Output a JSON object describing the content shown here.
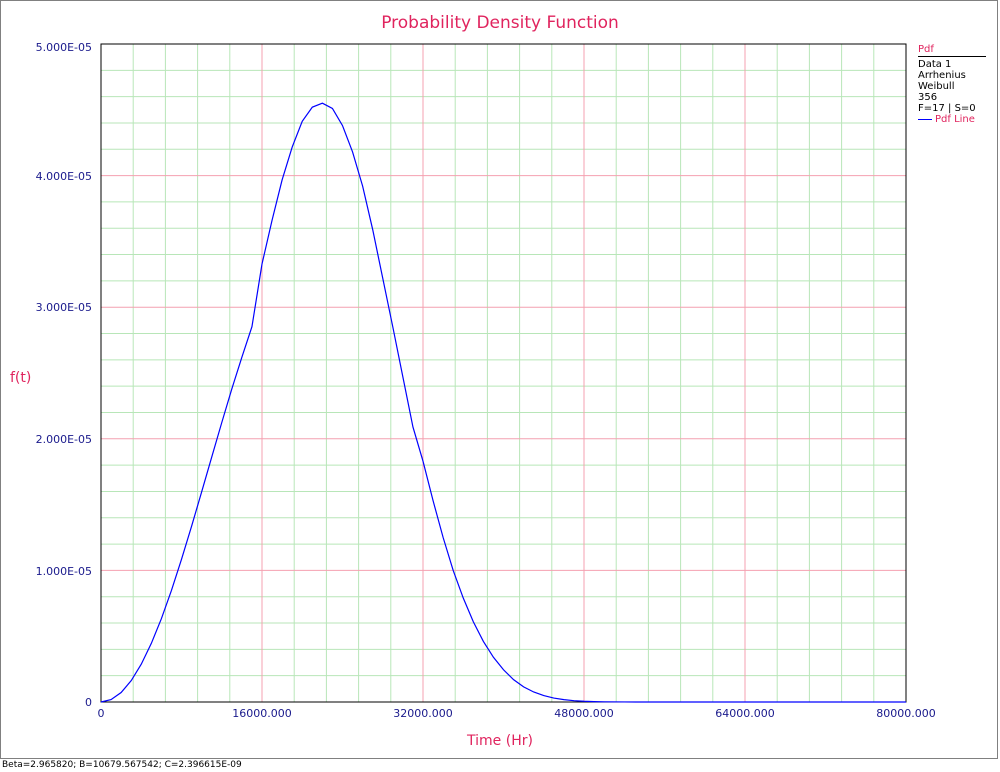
{
  "chart_data": {
    "type": "line",
    "title": "Probability Density Function",
    "xlabel": "Time (Hr)",
    "ylabel": "f(t)",
    "xlim": [
      0,
      80000
    ],
    "ylim": [
      0,
      5e-05
    ],
    "x_ticks": [
      "0",
      "16000.000",
      "32000.000",
      "48000.000",
      "64000.000",
      "80000.000"
    ],
    "y_ticks": [
      "0",
      "1.000E-05",
      "2.000E-05",
      "3.000E-05",
      "4.000E-05",
      "5.000E-05"
    ],
    "grid": true,
    "legend": {
      "placement": "top-right",
      "header": "Pdf",
      "lines": [
        "Data 1",
        "Arrhenius",
        "Weibull",
        "356",
        "F=17 | S=0"
      ],
      "series_label": "Pdf Line"
    },
    "series": [
      {
        "name": "Pdf Line",
        "color": "#0000ff",
        "x": [
          0,
          1000,
          2000,
          3000,
          4000,
          5000,
          6000,
          7000,
          8000,
          9000,
          10000,
          11000,
          12000,
          13000,
          14000,
          15000,
          16000,
          17000,
          18000,
          19000,
          20000,
          21000,
          22000,
          23000,
          24000,
          25000,
          26000,
          27000,
          28000,
          29000,
          30000,
          31000,
          32000,
          33000,
          34000,
          35000,
          36000,
          37000,
          38000,
          39000,
          40000,
          41000,
          42000,
          43000,
          44000,
          45000,
          46000,
          47000,
          48000,
          49000,
          50000,
          52000,
          54000,
          56000,
          60000,
          65000,
          70000,
          75000,
          80000
        ],
        "y": [
          0,
          1.8e-07,
          7.2e-07,
          1.62e-06,
          2.87e-06,
          4.45e-06,
          6.33e-06,
          8.48e-06,
          1.084e-05,
          1.335e-05,
          1.596e-05,
          1.86e-05,
          2.123e-05,
          2.379e-05,
          2.62e-05,
          2.852e-05,
          3.328e-05,
          3.661e-05,
          3.968e-05,
          4.217e-05,
          4.413e-05,
          4.52e-05,
          4.55e-05,
          4.51e-05,
          4.38e-05,
          4.18e-05,
          3.92e-05,
          3.59e-05,
          3.22e-05,
          2.85e-05,
          2.47e-05,
          2.09e-05,
          1.83e-05,
          1.53e-05,
          1.25e-05,
          1e-05,
          7.9e-06,
          6.1e-06,
          4.6e-06,
          3.4e-06,
          2.45e-06,
          1.7e-06,
          1.15e-06,
          7.6e-07,
          4.9e-07,
          3e-07,
          1.8e-07,
          1e-07,
          5.5e-08,
          3e-08,
          1.5e-08,
          3e-09,
          5e-10,
          0,
          0,
          0,
          0,
          0,
          0
        ]
      }
    ]
  },
  "footer_text": "Beta=2.965820; B=10679.567542; C=2.396615E-09",
  "colors": {
    "title": "#e0245e",
    "tick_text": "#1a1a8c",
    "major_grid": "#f4a0b0",
    "minor_grid": "#b8e6b8",
    "curve": "#0000ff"
  }
}
